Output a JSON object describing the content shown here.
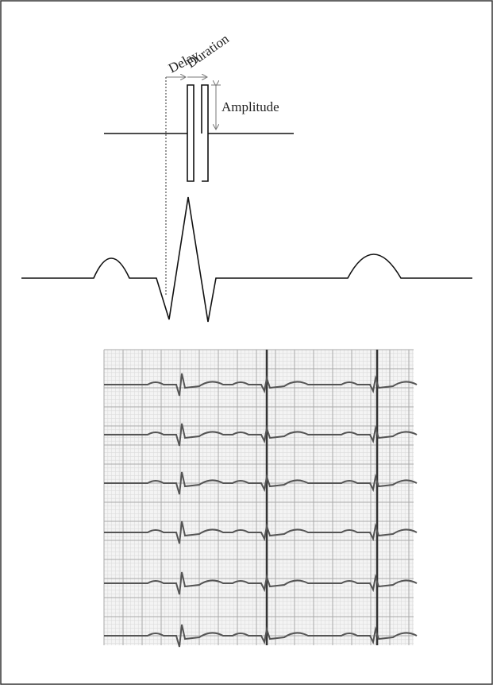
{
  "labels": {
    "delay": "Delay",
    "duration": "Duration",
    "amplitude": "Amplitude"
  }
}
